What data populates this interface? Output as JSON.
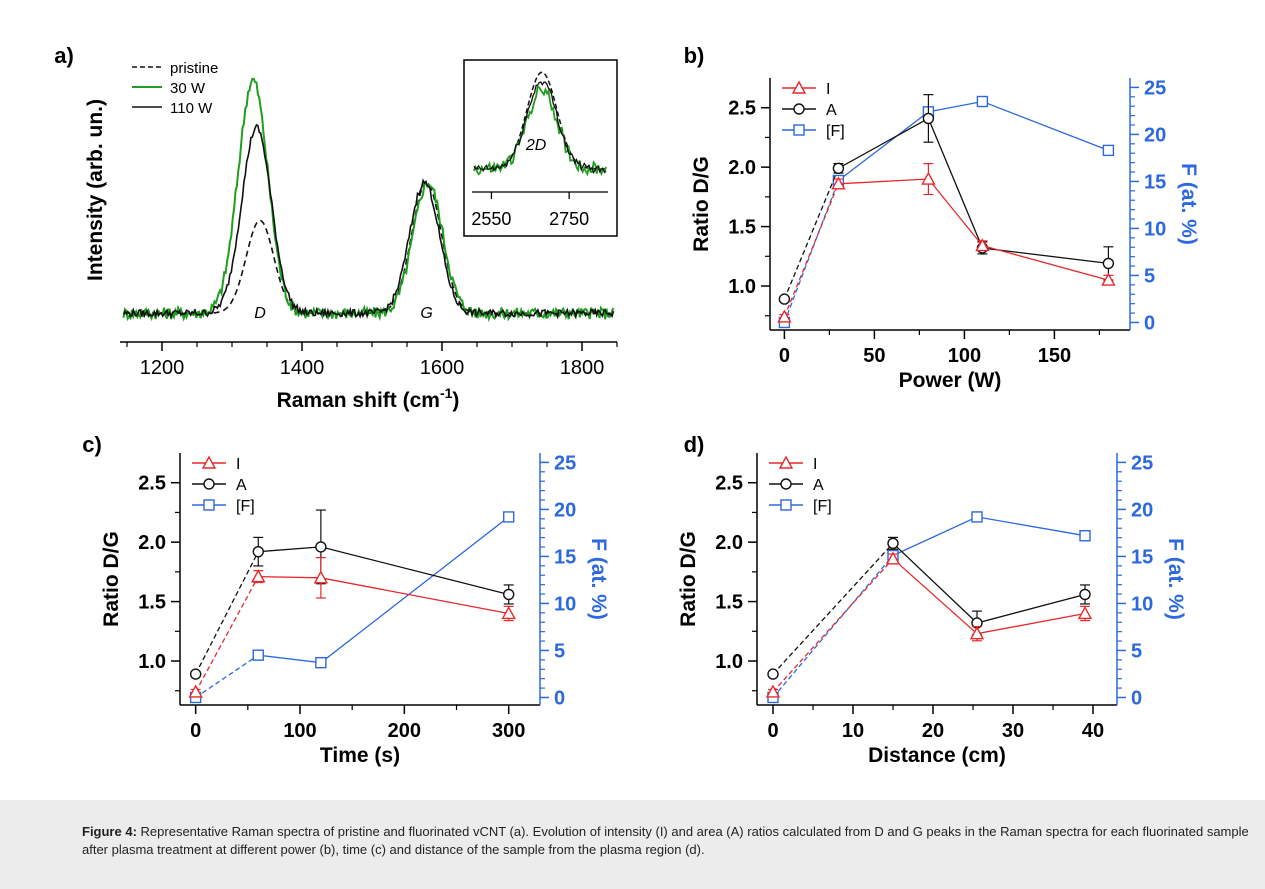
{
  "caption": {
    "label": "Figure 4:",
    "text": "Representative Raman spectra of pristine and fluorinated vCNT (a). Evolution of intensity (I) and area (A) ratios calculated from D and G peaks in the Raman spectra for each fluorinated sample after plasma treatment at different power (b), time (c) and distance of the sample from the plasma region (d)."
  },
  "colors": {
    "red": "#e8282a",
    "black": "#111111",
    "blue": "#2c68e0",
    "green": "#1f9e1f"
  },
  "chart_data": [
    {
      "panel": "a)",
      "type": "line",
      "xlabel": "Raman shift (cm",
      "xlabel_sup": "-1",
      "xlabel_close": ")",
      "ylabel": "Intensity (arb. un.)",
      "xlim": [
        1140,
        1850
      ],
      "xticks": [
        1200,
        1400,
        1600,
        1800
      ],
      "annotations": [
        "D",
        "G"
      ],
      "series": [
        {
          "name": "pristine",
          "style": "dashed",
          "peaks": [
            {
              "x": 1340,
              "h": 0.39,
              "w": 28
            },
            {
              "x": 1578,
              "h": 0.55,
              "w": 30
            }
          ]
        },
        {
          "name": "30 W",
          "style": "solid-green",
          "peaks": [
            {
              "x": 1330,
              "h": 0.98,
              "w": 30
            },
            {
              "x": 1580,
              "h": 0.55,
              "w": 30
            }
          ]
        },
        {
          "name": "110 W",
          "style": "solid-black",
          "peaks": [
            {
              "x": 1335,
              "h": 0.78,
              "w": 30
            },
            {
              "x": 1575,
              "h": 0.55,
              "w": 30
            }
          ]
        }
      ],
      "inset": {
        "xlim": [
          2500,
          2850
        ],
        "xticks": [
          2550,
          2750
        ],
        "label": "2D",
        "peak_x": 2680
      }
    },
    {
      "panel": "b)",
      "type": "line",
      "xlabel": "Power (W)",
      "ylabel": "Ratio D/G",
      "y2label": "F (at. %)",
      "xlim": [
        -8,
        192
      ],
      "xticks": [
        0,
        50,
        100,
        150
      ],
      "ylim": [
        0.63,
        2.75
      ],
      "yticks": [
        1.0,
        1.5,
        2.0,
        2.5
      ],
      "ytick_labels": [
        "1.0",
        "1.5",
        "2.0",
        "2.5"
      ],
      "y2lim": [
        -0.8,
        26
      ],
      "y2ticks": [
        0,
        5,
        10,
        15,
        20,
        25
      ],
      "y2tick_labels": [
        "0",
        "5",
        "10",
        "15",
        "20",
        "25"
      ],
      "legend": [
        "I",
        "A",
        "[F]"
      ],
      "I": {
        "x": [
          0,
          30,
          80,
          110,
          180
        ],
        "y": [
          0.74,
          1.86,
          1.9,
          1.34,
          1.05
        ],
        "err": [
          0.02,
          0.04,
          0.13,
          0.04,
          0.04
        ]
      },
      "A": {
        "x": [
          0,
          30,
          80,
          110,
          180
        ],
        "y": [
          0.89,
          1.99,
          2.41,
          1.32,
          1.19
        ],
        "err": [
          0.02,
          0.04,
          0.2,
          0.05,
          0.14
        ]
      },
      "F": {
        "x": [
          0,
          30,
          80,
          110,
          180
        ],
        "y": [
          0,
          15.1,
          22.4,
          23.5,
          18.3
        ]
      }
    },
    {
      "panel": "c)",
      "type": "line",
      "xlabel": "Time (s)",
      "ylabel": "Ratio D/G",
      "y2label": "F (at. %)",
      "xlim": [
        -15,
        330
      ],
      "xticks": [
        0,
        100,
        200,
        300
      ],
      "ylim": [
        0.63,
        2.75
      ],
      "yticks": [
        1.0,
        1.5,
        2.0,
        2.5
      ],
      "ytick_labels": [
        "1.0",
        "1.5",
        "2.0",
        "2.5"
      ],
      "y2lim": [
        -0.8,
        26
      ],
      "y2ticks": [
        0,
        5,
        10,
        15,
        20,
        25
      ],
      "y2tick_labels": [
        "0",
        "5",
        "10",
        "15",
        "20",
        "25"
      ],
      "legend": [
        "I",
        "A",
        "[F]"
      ],
      "I": {
        "x": [
          0,
          60,
          120,
          300
        ],
        "y": [
          0.74,
          1.71,
          1.7,
          1.4
        ],
        "err": [
          0.02,
          0.05,
          0.17,
          0.06
        ]
      },
      "A": {
        "x": [
          0,
          60,
          120,
          300
        ],
        "y": [
          0.89,
          1.92,
          1.96,
          1.56
        ],
        "err": [
          0.02,
          0.12,
          0.31,
          0.08
        ]
      },
      "F": {
        "x": [
          0,
          60,
          120,
          300
        ],
        "y": [
          0,
          4.5,
          3.7,
          19.2
        ]
      }
    },
    {
      "panel": "d)",
      "type": "line",
      "xlabel": "Distance (cm)",
      "ylabel": "Ratio D/G",
      "y2label": "F (at. %)",
      "xlim": [
        -2,
        43
      ],
      "xticks": [
        0,
        10,
        20,
        30,
        40
      ],
      "ylim": [
        0.63,
        2.75
      ],
      "yticks": [
        1.0,
        1.5,
        2.0,
        2.5
      ],
      "ytick_labels": [
        "1.0",
        "1.5",
        "2.0",
        "2.5"
      ],
      "y2lim": [
        -0.8,
        26
      ],
      "y2ticks": [
        0,
        5,
        10,
        15,
        20,
        25
      ],
      "y2tick_labels": [
        "0",
        "5",
        "10",
        "15",
        "20",
        "25"
      ],
      "legend": [
        "I",
        "A",
        "[F]"
      ],
      "I": {
        "x": [
          0,
          15,
          25.5,
          39
        ],
        "y": [
          0.74,
          1.86,
          1.23,
          1.4
        ],
        "err": [
          0.02,
          0.04,
          0.06,
          0.06
        ]
      },
      "A": {
        "x": [
          0,
          15,
          25.5,
          39
        ],
        "y": [
          0.89,
          1.99,
          1.32,
          1.56
        ],
        "err": [
          0.02,
          0.05,
          0.1,
          0.08
        ]
      },
      "F": {
        "x": [
          0,
          15,
          25.5,
          39
        ],
        "y": [
          0,
          15.1,
          19.2,
          17.2
        ]
      }
    }
  ]
}
